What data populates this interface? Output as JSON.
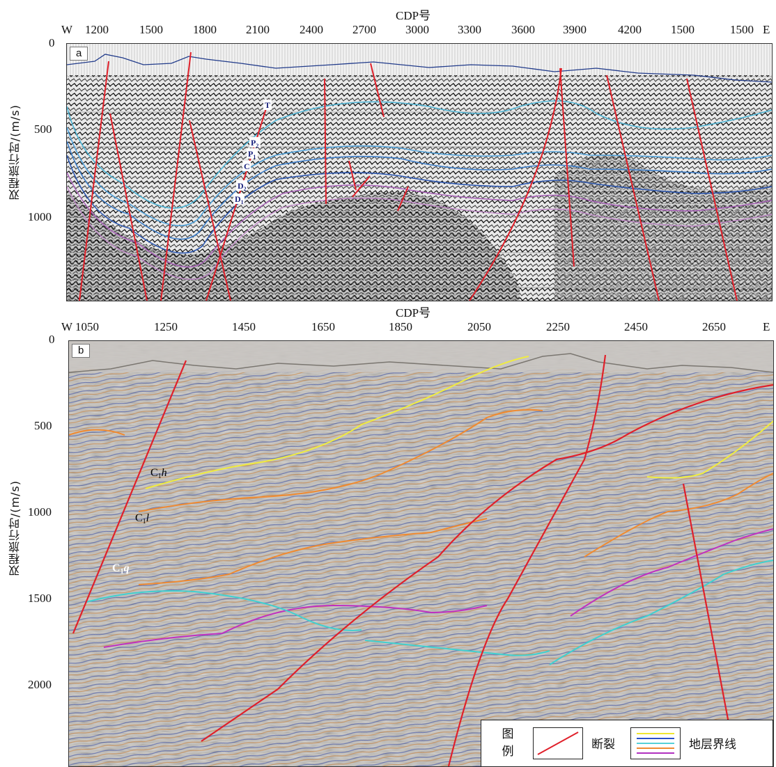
{
  "panel_a": {
    "tag": "a",
    "x_title": "CDP号",
    "x_left_label": "W",
    "x_right_label": "E",
    "x_ticks": [
      "1200",
      "1500",
      "1800",
      "2100",
      "2400",
      "2700",
      "3000",
      "3300",
      "3600",
      "3900",
      "4200",
      "1500",
      "1500"
    ],
    "y_ticks": [
      "0",
      "500",
      "1000"
    ],
    "y_title": "双程旅行时/(m/s)",
    "horizons": [
      {
        "base": "T",
        "sub": ""
      },
      {
        "base": "P",
        "sub": "2"
      },
      {
        "base": "P",
        "sub": "1"
      },
      {
        "base": "C",
        "sub": ""
      },
      {
        "base": "D",
        "sub": "2"
      },
      {
        "base": "D",
        "sub": "1"
      }
    ]
  },
  "panel_b": {
    "tag": "b",
    "x_title": "CDP号",
    "x_left_label": "W",
    "x_right_label": "E",
    "x_ticks": [
      "1050",
      "1250",
      "1450",
      "1650",
      "1850",
      "2050",
      "2250",
      "2450",
      "2650"
    ],
    "y_ticks": [
      "0",
      "500",
      "1000",
      "1500",
      "2000"
    ],
    "y_title": "双程旅行时/(m/s)",
    "horizons": [
      {
        "base": "C",
        "sub": "1",
        "ital": "h"
      },
      {
        "base": "C",
        "sub": "1",
        "ital": "l"
      },
      {
        "base": "C",
        "sub": "1",
        "ital": "q"
      }
    ]
  },
  "legend": {
    "title": "图例",
    "fault_label": "断裂",
    "strata_label": "地层界线",
    "fault_color": "#e0202a",
    "strata_colors": [
      "#f0e630",
      "#2a50c8",
      "#56d0d8",
      "#f08a30",
      "#b030c0"
    ]
  },
  "colors": {
    "fault": "#e0202a",
    "a_top": "#203a8a",
    "a_T": "#4fb4d4",
    "a_P2": "#4fa0d8",
    "a_P1": "#3e7ec8",
    "a_C": "#2e58b0",
    "a_D2": "#a860b8",
    "a_D1": "#c088c8",
    "b_yellow": "#f0ec40",
    "b_orange": "#f08a30",
    "b_magenta": "#c030c0",
    "b_cyan": "#40d0d0"
  }
}
